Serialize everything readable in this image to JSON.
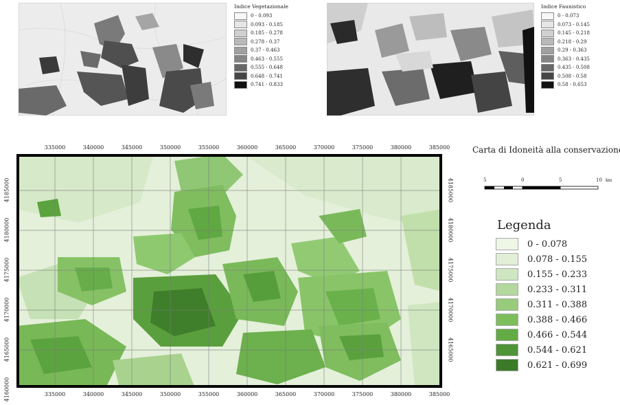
{
  "vegetation_map": {
    "legend_title": "Indice Vegetazionale",
    "classes": [
      {
        "label": "0 - 0.093",
        "color": "#f7f7f7"
      },
      {
        "label": "0.093 - 0.185",
        "color": "#e6e6e6"
      },
      {
        "label": "0.185 - 0.278",
        "color": "#d0d0d0"
      },
      {
        "label": "0.278 - 0.37",
        "color": "#b9b9b9"
      },
      {
        "label": "0.37 - 0.463",
        "color": "#a0a0a0"
      },
      {
        "label": "0.463 - 0.555",
        "color": "#858585"
      },
      {
        "label": "0.555 - 0.648",
        "color": "#686868"
      },
      {
        "label": "0.648 - 0.741",
        "color": "#454545"
      },
      {
        "label": "0.741 - 0.833",
        "color": "#111111"
      }
    ]
  },
  "faunistic_map": {
    "legend_title": "Indice Faunistico",
    "classes": [
      {
        "label": "0 - 0.073",
        "color": "#f7f7f7"
      },
      {
        "label": "0.073 - 0.145",
        "color": "#e6e6e6"
      },
      {
        "label": "0.145 - 0.218",
        "color": "#d0d0d0"
      },
      {
        "label": "0.218 - 0.29",
        "color": "#b9b9b9"
      },
      {
        "label": "0.29 - 0.363",
        "color": "#a0a0a0"
      },
      {
        "label": "0.363 - 0.435",
        "color": "#858585"
      },
      {
        "label": "0.435 - 0.508",
        "color": "#686868"
      },
      {
        "label": "0.508 - 0.58",
        "color": "#454545"
      },
      {
        "label": "0.58 - 0.653",
        "color": "#111111"
      }
    ]
  },
  "main_map": {
    "title": "Carta di Idoneità alla conservazione",
    "x_ticks": [
      "335000",
      "340000",
      "345000",
      "350000",
      "355000",
      "360000",
      "365000",
      "370000",
      "375000",
      "380000",
      "385000"
    ],
    "y_ticks_left": [
      "4185000",
      "4180000",
      "4175000",
      "4170000",
      "4165000",
      "4160000"
    ],
    "y_ticks_right": [
      "4185000",
      "4180000",
      "4175000",
      "4170000",
      "4165000"
    ],
    "scale_bar": {
      "labels": [
        "5",
        "0",
        "5",
        "10"
      ],
      "unit": "km"
    },
    "legend_title": "Legenda",
    "classes": [
      {
        "label": "0 - 0.078",
        "color": "#eef6e6"
      },
      {
        "label": "0.078 - 0.155",
        "color": "#e1efd7"
      },
      {
        "label": "0.155 - 0.233",
        "color": "#cfe6c2"
      },
      {
        "label": "0.233 - 0.311",
        "color": "#b4d99e"
      },
      {
        "label": "0.311 - 0.388",
        "color": "#98cb7c"
      },
      {
        "label": "0.388 - 0.466",
        "color": "#7dbe5c"
      },
      {
        "label": "0.466 - 0.544",
        "color": "#63ab45"
      },
      {
        "label": "0.544 - 0.621",
        "color": "#4f9436"
      },
      {
        "label": "0.621 - 0.699",
        "color": "#3b7a28"
      }
    ]
  }
}
